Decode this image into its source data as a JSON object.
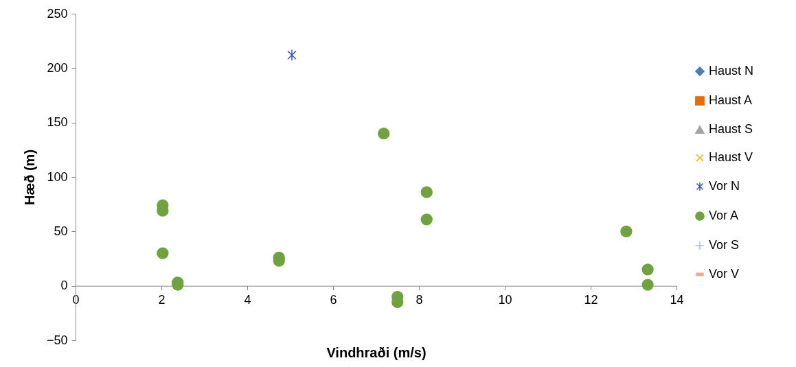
{
  "chart_data": {
    "type": "scatter",
    "xlabel": "Vindhraði (m/s)",
    "ylabel": "Hæð (m)",
    "xlim": [
      0,
      14
    ],
    "xticks": [
      0,
      2,
      4,
      6,
      8,
      10,
      12,
      14
    ],
    "ylim": [
      -50,
      250
    ],
    "yticks": [
      -50,
      0,
      50,
      100,
      150,
      200,
      250
    ],
    "grid": false,
    "legend": "right",
    "series": [
      {
        "name": "Haust N",
        "color": "#4a7ebb",
        "marker": "diamond"
      },
      {
        "name": "Haust A",
        "color": "#e46c0a",
        "marker": "square"
      },
      {
        "name": "Haust S",
        "color": "#a5a5a5",
        "marker": "triangle"
      },
      {
        "name": "Haust V",
        "color": "#f0b400",
        "marker": "x"
      },
      {
        "name": "Vor N",
        "color": "#3a5aad",
        "marker": "cross",
        "x": [
          5.04
        ],
        "values": [
          212
        ]
      },
      {
        "name": "Vor A",
        "color": "#70a33f",
        "marker": "circle",
        "x": [
          2.03,
          2.03,
          2.03,
          2.38,
          2.38,
          4.74,
          4.74,
          7.18,
          8.18,
          8.18,
          7.5,
          7.5,
          12.83,
          13.33,
          13.33
        ],
        "values": [
          74,
          69,
          30,
          3,
          1,
          26,
          23,
          140,
          86,
          61,
          -10,
          -15,
          50,
          15,
          1
        ]
      },
      {
        "name": "Vor S",
        "color": "#a9bde0",
        "marker": "plus"
      },
      {
        "name": "Vor V",
        "color": "#f4a582",
        "marker": "dash"
      }
    ]
  }
}
